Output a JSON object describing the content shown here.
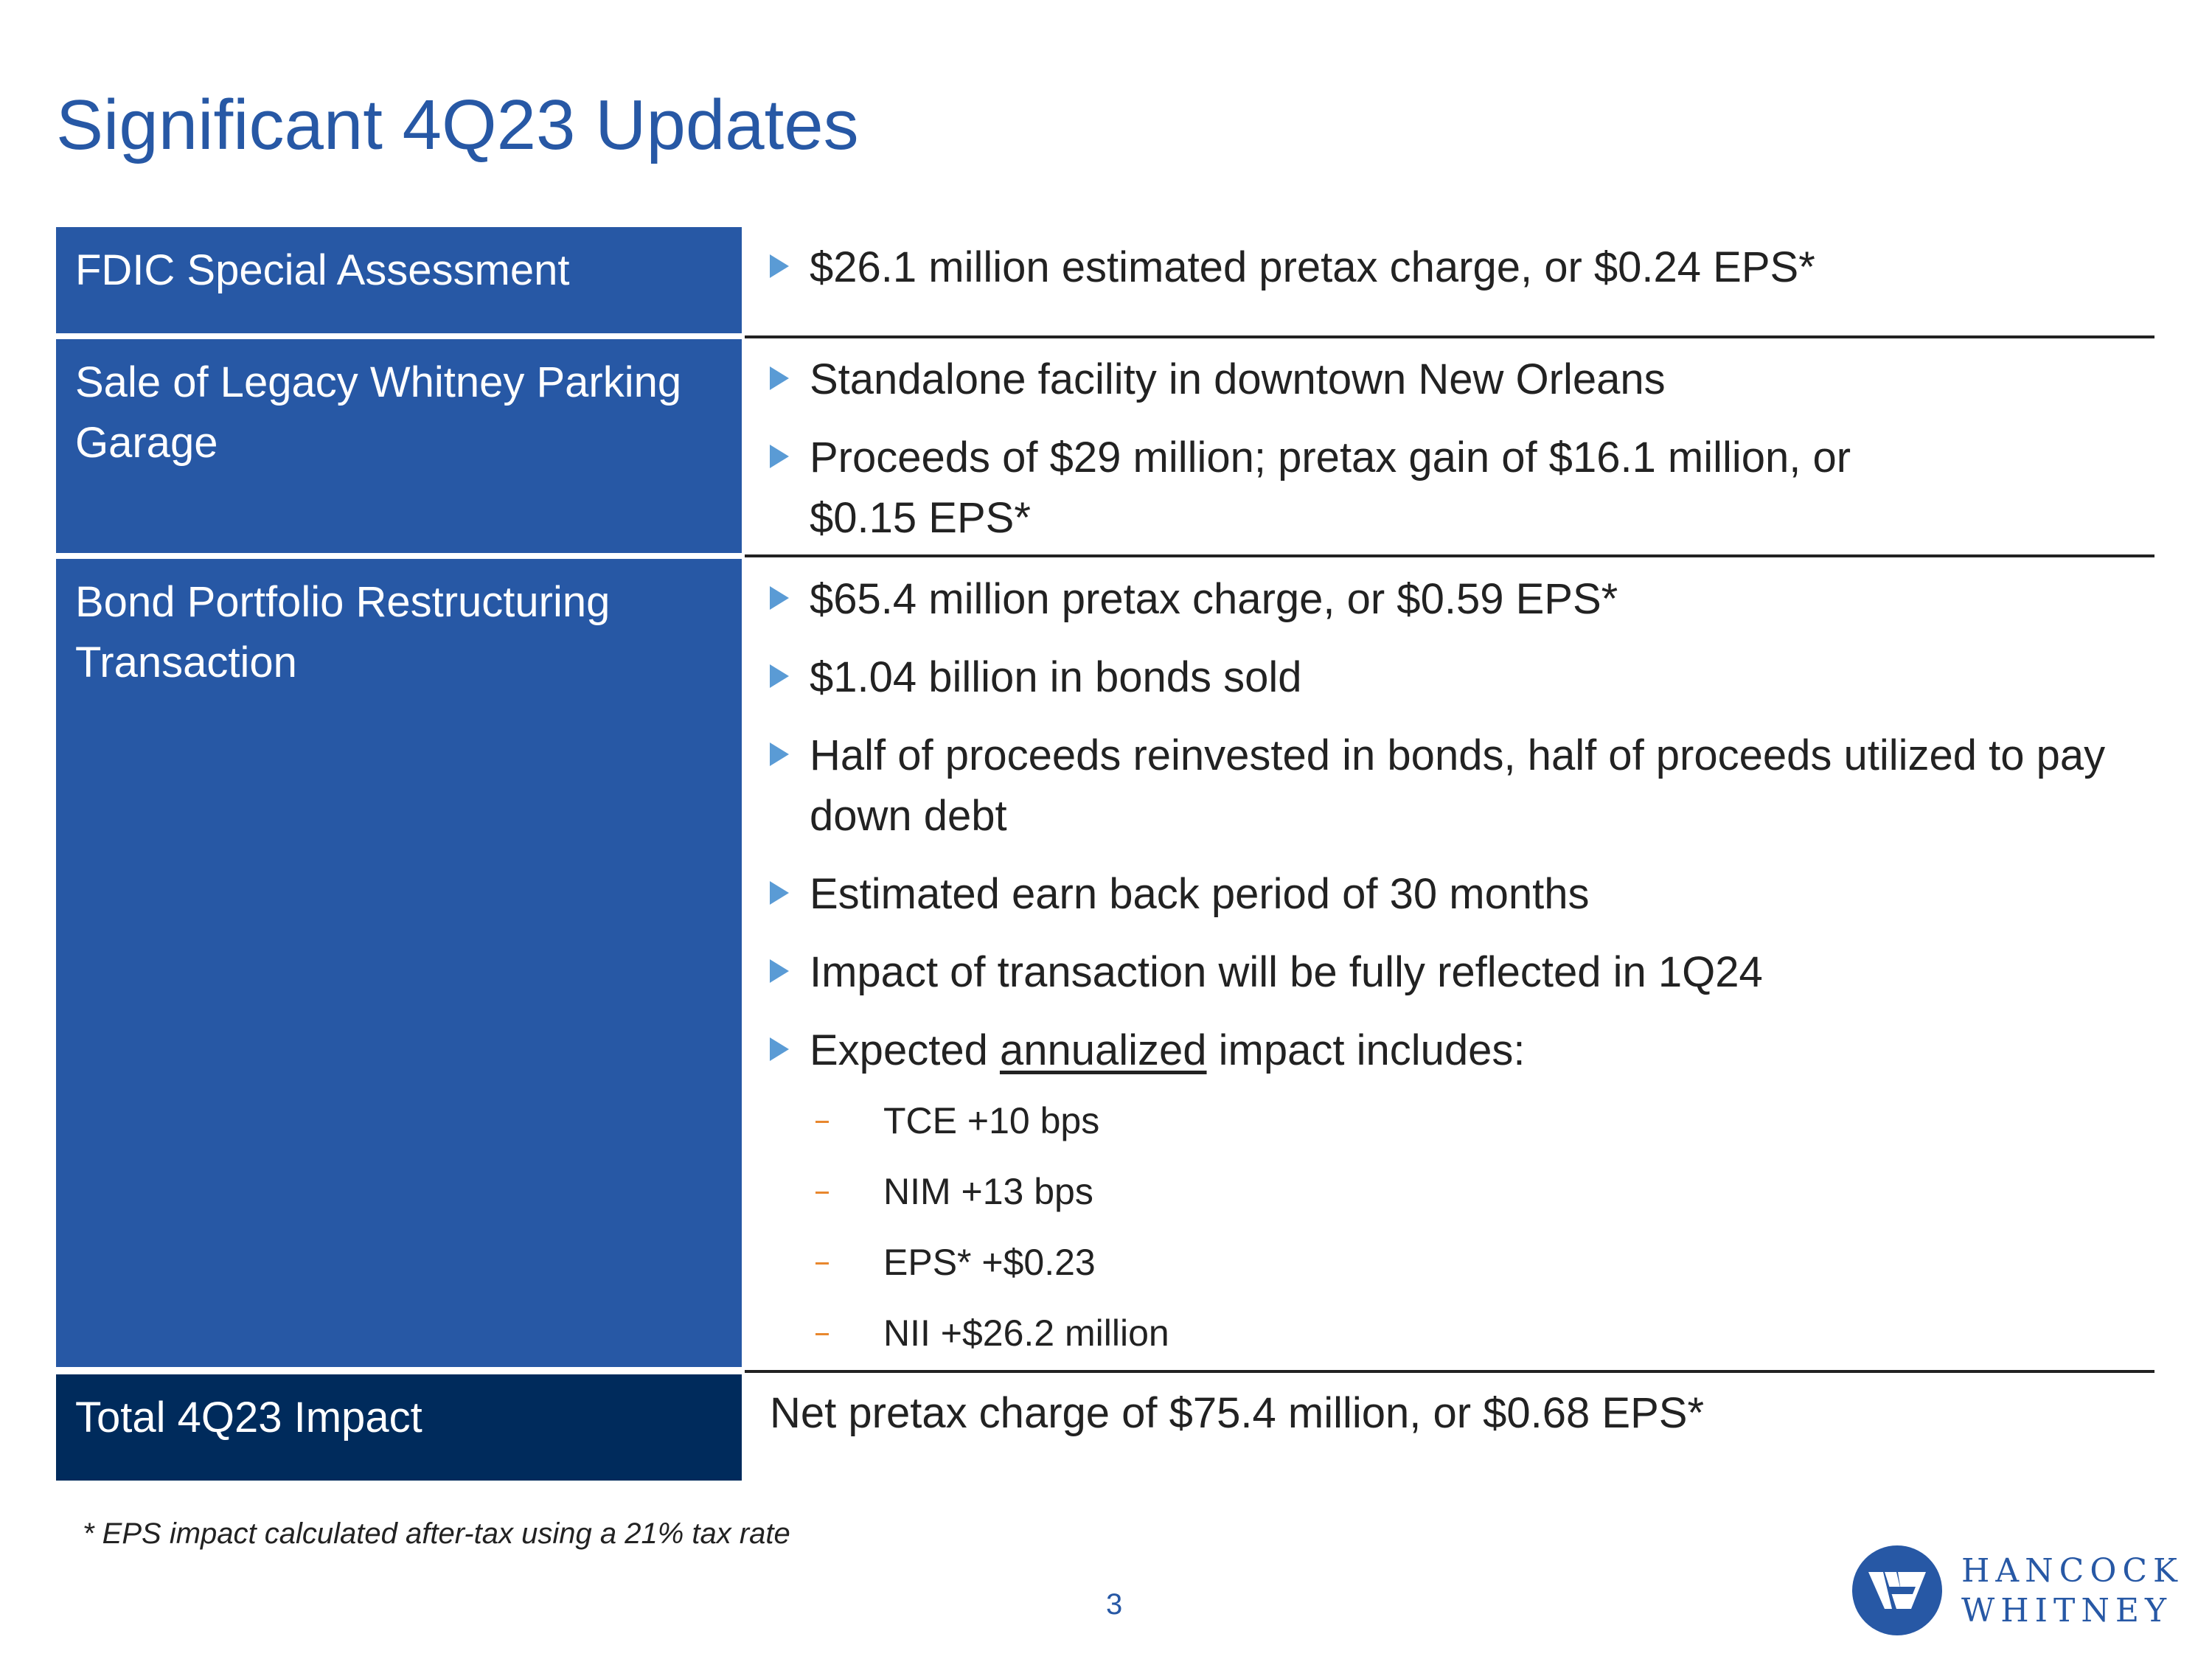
{
  "slide": {
    "title": "Significant 4Q23 Updates",
    "page_number": "3",
    "footnote": "* EPS impact calculated after-tax using a 21% tax rate"
  },
  "rows": [
    {
      "label": "FDIC Special Assessment",
      "bullets": [
        "$26.1 million estimated pretax charge, or $0.24 EPS*"
      ]
    },
    {
      "label": "Sale of Legacy Whitney Parking Garage",
      "bullets": [
        "Standalone facility in downtown New Orleans",
        "Proceeds of $29 million; pretax gain of $16.1 million, or $0.15 EPS*"
      ]
    },
    {
      "label": "Bond Portfolio Restructuring Transaction",
      "bullets": [
        "$65.4 million pretax charge, or $0.59 EPS*",
        "$1.04 billion in bonds sold",
        "Half of proceeds reinvested in bonds, half of proceeds utilized to pay down debt",
        "Estimated earn back period of 30 months",
        "Impact of transaction will be fully reflected in 1Q24"
      ],
      "expected": {
        "prefix": "Expected ",
        "underlined": "annualized",
        "suffix": " impact includes:"
      },
      "sub_bullets": [
        "TCE +10 bps",
        "NIM +13 bps",
        "EPS* +$0.23",
        "NII +$26.2 million"
      ]
    }
  ],
  "total": {
    "label": "Total 4Q23 Impact",
    "text": "Net pretax charge of $75.4 million, or $0.68 EPS*"
  },
  "logo": {
    "line1": "HANCOCK",
    "line2": "WHITNEY"
  },
  "colors": {
    "title_blue": "#2758a5",
    "label_blue": "#2758a5",
    "label_navy": "#002b5c",
    "bullet_arrow": "#5a9bd5",
    "sub_dash": "#e8872e"
  }
}
